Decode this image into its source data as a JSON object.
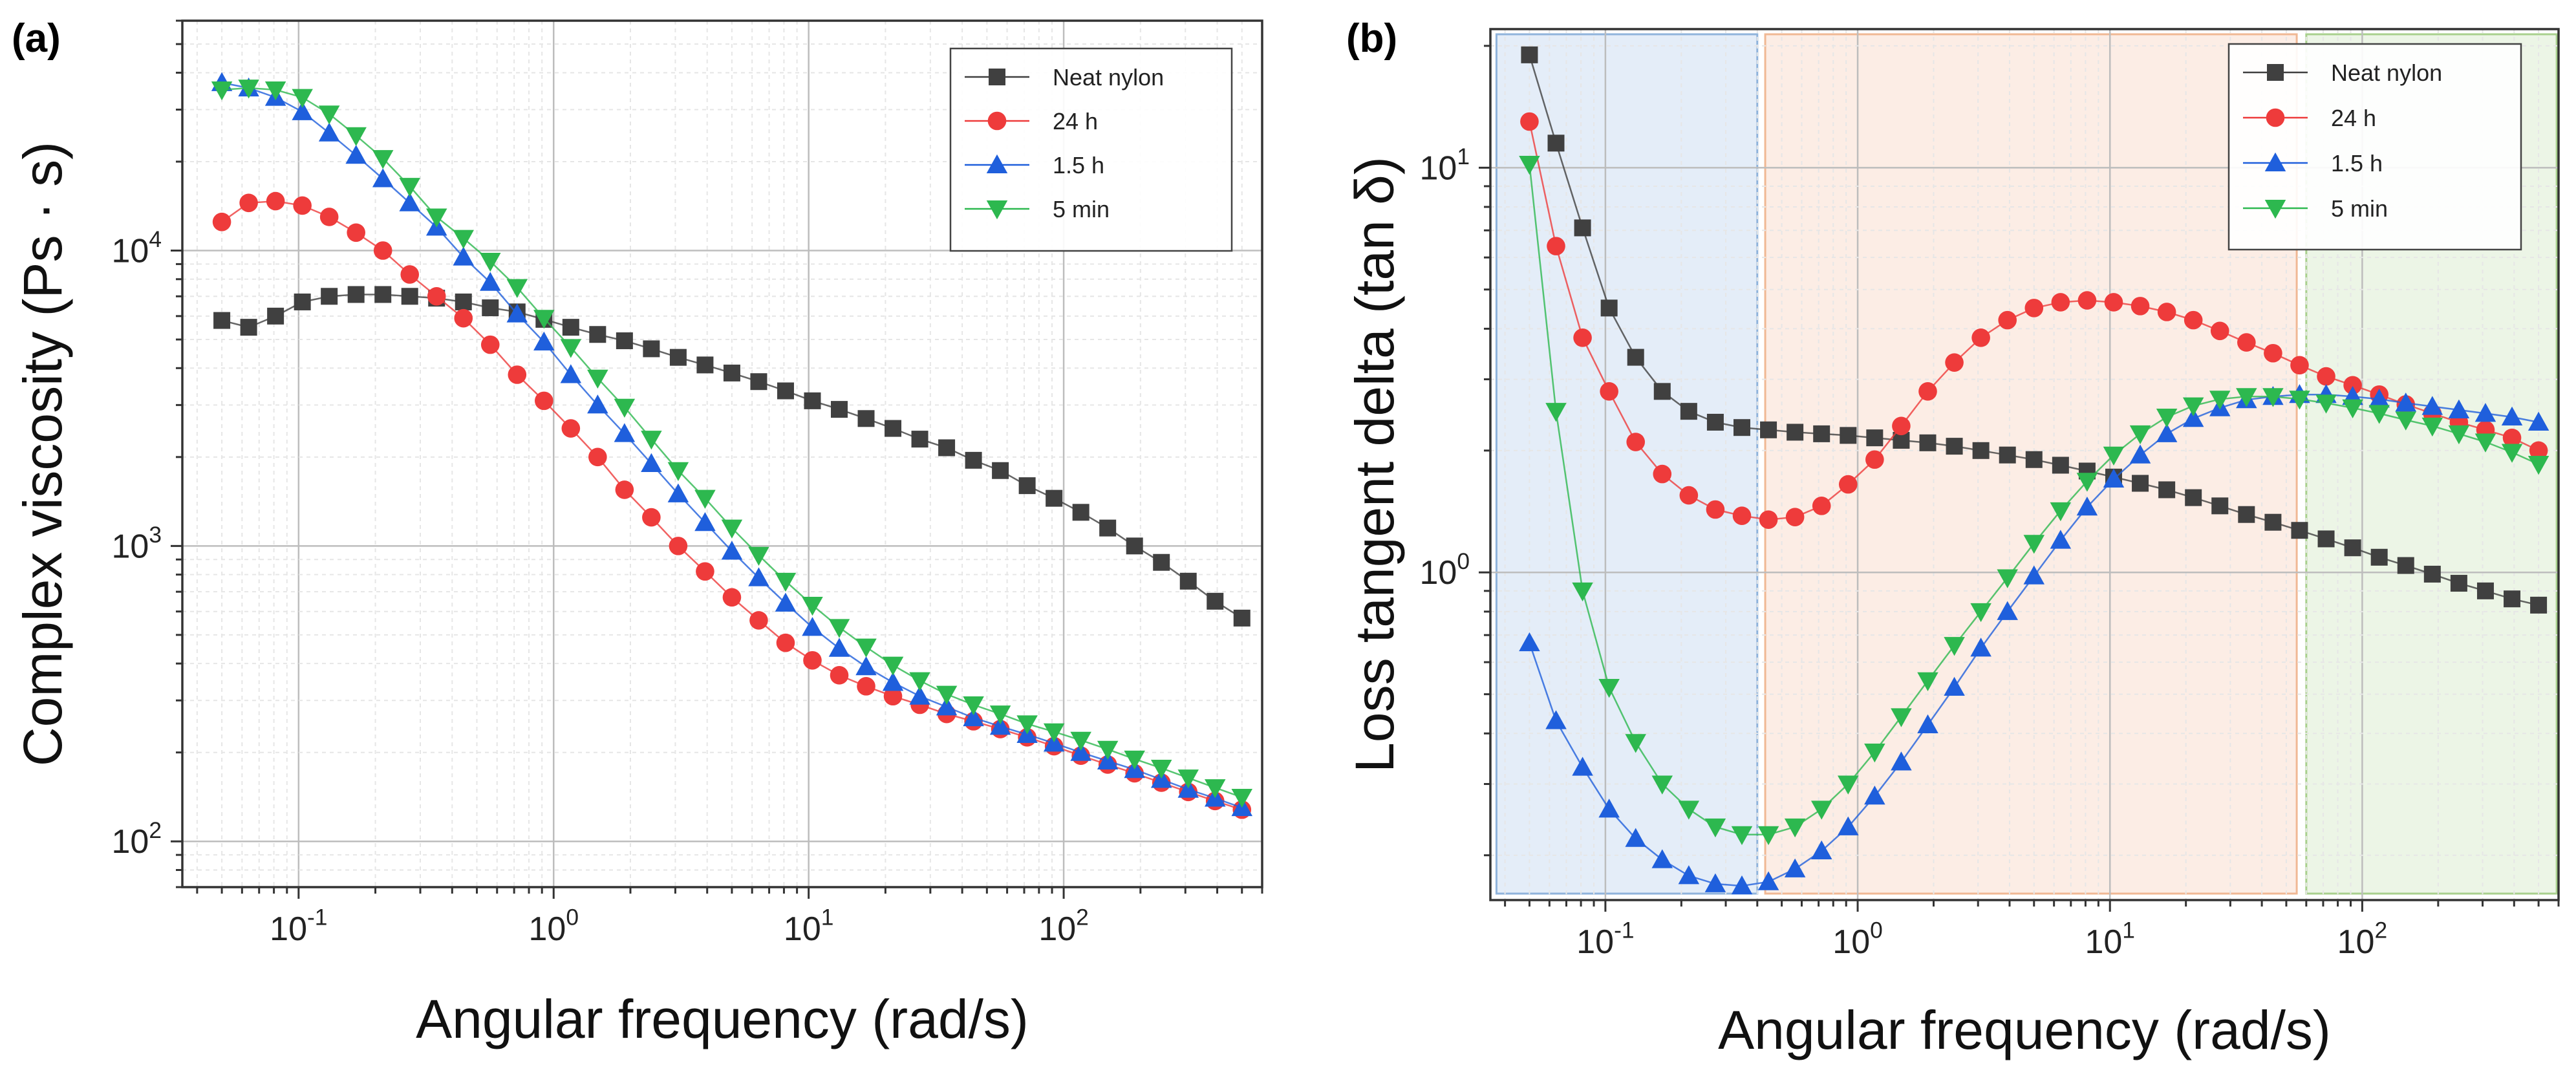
{
  "chart_data": [
    {
      "panel_label": "(a)",
      "type": "line",
      "xscale": "log",
      "yscale": "log",
      "xlabel": "Angular frequency (rad/s)",
      "ylabel": "Complex viscosity (Ps · s)",
      "xlim": [
        0.035,
        600
      ],
      "ylim": [
        70,
        60000
      ],
      "x_ticks": [
        {
          "value": 0.1,
          "base": "10",
          "exp": "-1"
        },
        {
          "value": 1,
          "base": "10",
          "exp": "0"
        },
        {
          "value": 10,
          "base": "10",
          "exp": "1"
        },
        {
          "value": 100,
          "base": "10",
          "exp": "2"
        }
      ],
      "y_ticks": [
        {
          "value": 100,
          "base": "10",
          "exp": "2"
        },
        {
          "value": 1000,
          "base": "10",
          "exp": "3"
        },
        {
          "value": 10000,
          "base": "10",
          "exp": "4"
        }
      ],
      "grid": true,
      "legend_position": "top-right",
      "series": [
        {
          "name": "Neat nylon",
          "color": "#404040",
          "marker": "square",
          "values": [
            5800,
            5500,
            6000,
            6700,
            7000,
            7100,
            7100,
            7000,
            6900,
            6700,
            6400,
            6200,
            5850,
            5500,
            5200,
            4950,
            4650,
            4350,
            4100,
            3850,
            3600,
            3350,
            3100,
            2900,
            2700,
            2500,
            2300,
            2150,
            1950,
            1800,
            1600,
            1450,
            1300,
            1150,
            1000,
            880,
            760,
            650,
            570
          ]
        },
        {
          "name": "24 h",
          "color": "#ee3b3b",
          "marker": "circle",
          "values": [
            12500,
            14500,
            14700,
            14200,
            13000,
            11500,
            10000,
            8300,
            7000,
            5900,
            4800,
            3800,
            3100,
            2500,
            2000,
            1550,
            1250,
            1000,
            820,
            670,
            560,
            470,
            410,
            365,
            335,
            310,
            290,
            270,
            255,
            240,
            225,
            210,
            195,
            182,
            170,
            158,
            147,
            137,
            128
          ]
        },
        {
          "name": "1.5 h",
          "color": "#1f5fdc",
          "marker": "triangle-up",
          "values": [
            37000,
            35500,
            33000,
            29500,
            25000,
            21000,
            17500,
            14500,
            12000,
            9500,
            7800,
            6100,
            4900,
            3800,
            3000,
            2400,
            1900,
            1500,
            1200,
            960,
            780,
            640,
            530,
            450,
            390,
            345,
            310,
            285,
            262,
            245,
            230,
            215,
            200,
            187,
            175,
            162,
            150,
            140,
            130
          ]
        },
        {
          "name": "5 min",
          "color": "#2db84f",
          "marker": "triangle-down",
          "values": [
            35000,
            35500,
            35000,
            33000,
            29000,
            24500,
            20500,
            16500,
            13000,
            11000,
            9200,
            7500,
            5900,
            4700,
            3700,
            2950,
            2300,
            1800,
            1450,
            1150,
            930,
            760,
            630,
            530,
            455,
            395,
            350,
            315,
            290,
            270,
            250,
            235,
            220,
            205,
            190,
            177,
            164,
            152,
            141
          ]
        }
      ]
    },
    {
      "panel_label": "(b)",
      "type": "line",
      "xscale": "log",
      "yscale": "log",
      "xlabel": "Angular frequency (rad/s)",
      "ylabel": "Loss tangent delta (tan δ)",
      "xlim": [
        0.035,
        600
      ],
      "ylim": [
        0.155,
        22
      ],
      "x_ticks": [
        {
          "value": 0.1,
          "base": "10",
          "exp": "-1"
        },
        {
          "value": 1,
          "base": "10",
          "exp": "0"
        },
        {
          "value": 10,
          "base": "10",
          "exp": "1"
        },
        {
          "value": 100,
          "base": "10",
          "exp": "2"
        }
      ],
      "y_ticks": [
        {
          "value": 1,
          "base": "10",
          "exp": "0"
        },
        {
          "value": 10,
          "base": "10",
          "exp": "1"
        }
      ],
      "grid": true,
      "legend_position": "top-right",
      "shaded_regions": [
        {
          "x_range": [
            0.037,
            0.4
          ],
          "fill": "#dbe7f5",
          "stroke": "#8fb3db"
        },
        {
          "x_range": [
            0.43,
            55
          ],
          "fill": "#fbe7dc",
          "stroke": "#f0b894"
        },
        {
          "x_range": [
            60,
            590
          ],
          "fill": "#e5f1dd",
          "stroke": "#a8d08d"
        }
      ],
      "series": [
        {
          "name": "Neat nylon",
          "color": "#404040",
          "marker": "square",
          "values": [
            19,
            11.5,
            7.1,
            4.5,
            3.4,
            2.8,
            2.5,
            2.35,
            2.28,
            2.25,
            2.22,
            2.2,
            2.18,
            2.15,
            2.12,
            2.09,
            2.05,
            2.0,
            1.95,
            1.9,
            1.84,
            1.78,
            1.72,
            1.66,
            1.6,
            1.53,
            1.46,
            1.39,
            1.33,
            1.27,
            1.21,
            1.15,
            1.09,
            1.04,
            0.99,
            0.94,
            0.9,
            0.86,
            0.83
          ]
        },
        {
          "name": "24 h",
          "color": "#ee3b3b",
          "marker": "circle",
          "values": [
            13,
            6.4,
            3.8,
            2.8,
            2.1,
            1.75,
            1.55,
            1.43,
            1.38,
            1.35,
            1.37,
            1.46,
            1.65,
            1.9,
            2.3,
            2.8,
            3.3,
            3.8,
            4.2,
            4.5,
            4.65,
            4.7,
            4.65,
            4.55,
            4.4,
            4.2,
            3.95,
            3.7,
            3.48,
            3.25,
            3.05,
            2.9,
            2.75,
            2.6,
            2.47,
            2.35,
            2.25,
            2.15,
            2.0
          ]
        },
        {
          "name": "1.5 h",
          "color": "#1f5fdc",
          "marker": "triangle-up",
          "values": [
            0.67,
            0.43,
            0.33,
            0.26,
            0.22,
            0.195,
            0.178,
            0.17,
            0.168,
            0.172,
            0.185,
            0.205,
            0.235,
            0.28,
            0.34,
            0.42,
            0.52,
            0.65,
            0.8,
            0.98,
            1.2,
            1.45,
            1.7,
            1.95,
            2.2,
            2.4,
            2.55,
            2.67,
            2.72,
            2.75,
            2.75,
            2.72,
            2.68,
            2.62,
            2.57,
            2.52,
            2.47,
            2.42,
            2.35
          ]
        },
        {
          "name": "5 min",
          "color": "#2db84f",
          "marker": "triangle-down",
          "values": [
            10.2,
            2.5,
            0.9,
            0.52,
            0.38,
            0.3,
            0.26,
            0.235,
            0.225,
            0.225,
            0.235,
            0.26,
            0.3,
            0.36,
            0.44,
            0.54,
            0.66,
            0.8,
            0.97,
            1.18,
            1.42,
            1.68,
            1.95,
            2.2,
            2.42,
            2.58,
            2.68,
            2.72,
            2.72,
            2.68,
            2.62,
            2.55,
            2.47,
            2.38,
            2.3,
            2.2,
            2.1,
            1.98,
            1.85
          ]
        }
      ]
    }
  ]
}
